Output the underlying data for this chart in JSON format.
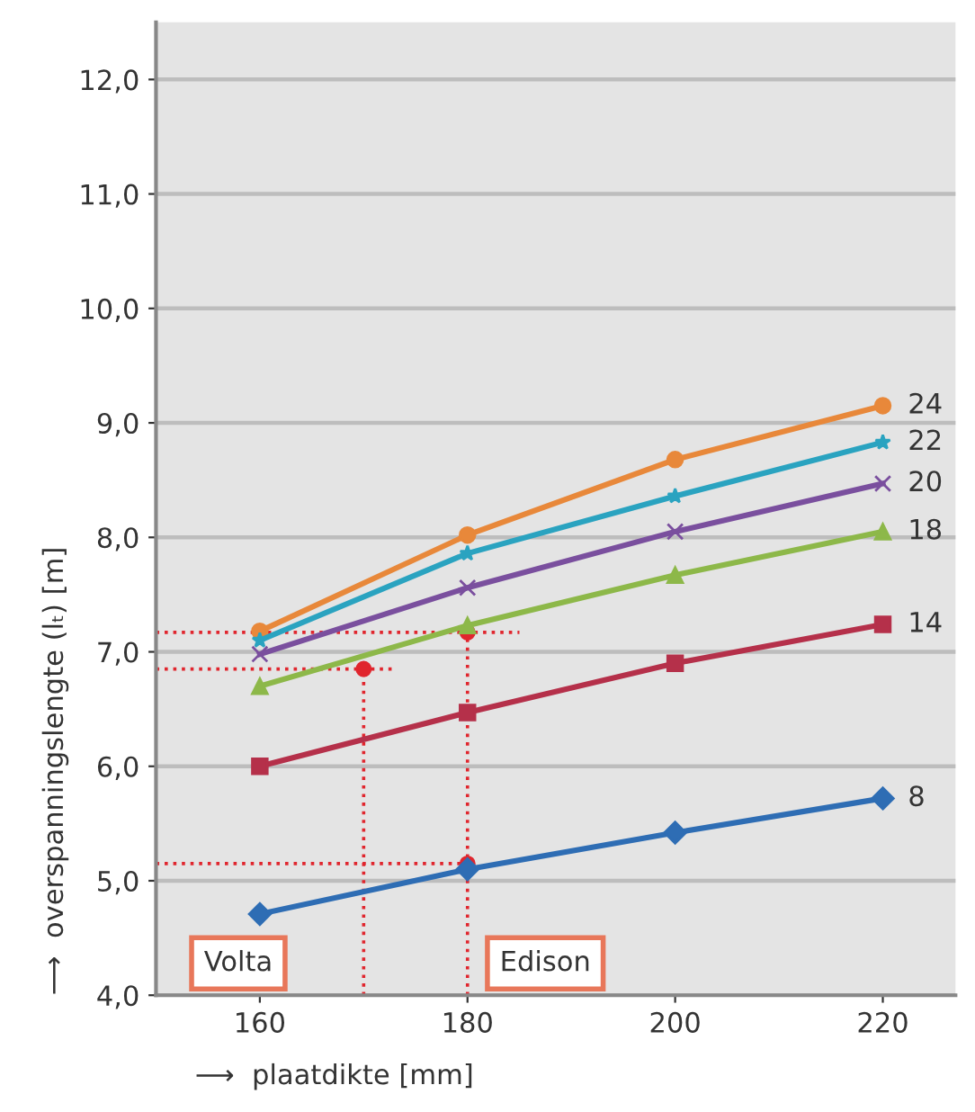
{
  "chart_data": {
    "type": "line",
    "xlabel": "⟶  plaatdikte [mm]",
    "ylabel": "⟶  overspanningslengte (lₜ) [m]",
    "x": [
      160,
      180,
      200,
      220
    ],
    "series": [
      {
        "name": "24",
        "color": "#e8883a",
        "marker": "circle",
        "values": [
          7.18,
          8.02,
          8.68,
          9.15
        ]
      },
      {
        "name": "22",
        "color": "#2aa3c0",
        "marker": "star",
        "values": [
          7.1,
          7.86,
          8.36,
          8.83
        ]
      },
      {
        "name": "20",
        "color": "#7a4f9e",
        "marker": "cross",
        "values": [
          6.98,
          7.56,
          8.05,
          8.47
        ]
      },
      {
        "name": "18",
        "color": "#8db849",
        "marker": "triangle",
        "values": [
          6.7,
          7.23,
          7.67,
          8.05
        ]
      },
      {
        "name": "14",
        "color": "#b5304a",
        "marker": "square",
        "values": [
          6.0,
          6.47,
          6.9,
          7.24
        ]
      },
      {
        "name": "8",
        "color": "#2e6db4",
        "marker": "diamond",
        "values": [
          4.71,
          5.1,
          5.42,
          5.72
        ]
      },
      {
        "type": "line",
        "color": "#e0262e",
        "marker": "none",
        "line_style": "dotted",
        "x": [
          150,
          185
        ],
        "values": [
          7.17,
          7.17
        ]
      },
      {
        "type": "line",
        "color": "#e0262e",
        "marker": "none",
        "line_style": "dotted",
        "x": [
          180,
          180
        ],
        "values": [
          4.0,
          7.17
        ]
      },
      {
        "type": "line",
        "color": "#e0262e",
        "marker": "none",
        "line_style": "dotted",
        "x": [
          150,
          173
        ],
        "values": [
          6.85,
          6.85
        ]
      },
      {
        "type": "line",
        "color": "#e0262e",
        "marker": "none",
        "line_style": "dotted",
        "x": [
          170,
          170
        ],
        "values": [
          4.0,
          6.85
        ]
      },
      {
        "type": "line",
        "color": "#e0262e",
        "marker": "none",
        "line_style": "dotted",
        "x": [
          150,
          180
        ],
        "values": [
          5.15,
          5.15
        ]
      },
      {
        "type": "scatter",
        "color": "#e0262e",
        "marker": "circle",
        "x": [
          170,
          180,
          180
        ],
        "values": [
          6.85,
          7.17,
          5.15
        ]
      }
    ],
    "annotations": [
      "Volta",
      "Edison"
    ],
    "xlim": [
      150,
      227
    ],
    "xticks": [
      160,
      180,
      200,
      220
    ],
    "ylim": [
      4.0,
      12.5
    ],
    "yticks": [
      {
        "value": 4,
        "label": "4,0"
      },
      {
        "value": 5,
        "label": "5,0"
      },
      {
        "value": 6,
        "label": "6,0"
      },
      {
        "value": 7,
        "label": "7,0"
      },
      {
        "value": 8,
        "label": "8,0"
      },
      {
        "value": 9,
        "label": "9,0"
      },
      {
        "value": 10,
        "label": "10,0"
      },
      {
        "value": 11,
        "label": "11,0"
      },
      {
        "value": 12,
        "label": "12,0"
      }
    ],
    "grid": "y",
    "legend": false
  }
}
